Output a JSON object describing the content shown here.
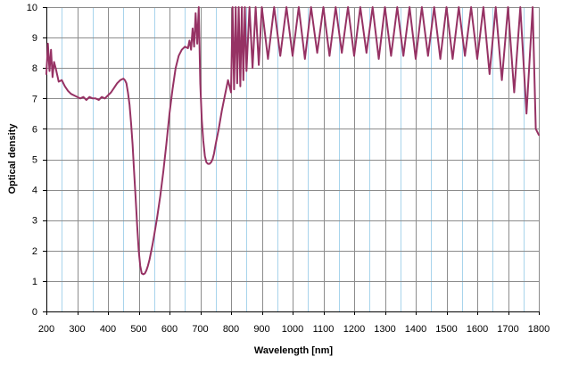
{
  "chart_data": {
    "type": "line",
    "title": "",
    "xlabel": "Wavelength [nm]",
    "ylabel": "Optical density",
    "xlim": [
      200,
      1800
    ],
    "ylim": [
      0,
      10
    ],
    "x_major_ticks": [
      200,
      300,
      400,
      500,
      600,
      700,
      800,
      900,
      1000,
      1100,
      1200,
      1300,
      1400,
      1500,
      1600,
      1700,
      1800
    ],
    "x_minor_step": 50,
    "y_ticks": [
      0,
      1,
      2,
      3,
      4,
      5,
      6,
      7,
      8,
      9,
      10
    ],
    "grid": true,
    "legend": "none",
    "colors": {
      "line": "#963264",
      "grid_major": "#8c8c8c",
      "grid_minor": "#a8d4ec",
      "axis": "#000000"
    },
    "series": [
      {
        "x": [
          200,
          205,
          210,
          215,
          220,
          225,
          230,
          240,
          250,
          260,
          270,
          280,
          290,
          300,
          310,
          320,
          330,
          340,
          350,
          360,
          370,
          380,
          390,
          400,
          410,
          420,
          430,
          440,
          450,
          455,
          460,
          465,
          470,
          475,
          480,
          485,
          490,
          495,
          500,
          505,
          510,
          515,
          520,
          525,
          530,
          535,
          540,
          545,
          550,
          560,
          570,
          580,
          590,
          600,
          610,
          620,
          630,
          640,
          650,
          660,
          665,
          670,
          675,
          680,
          685,
          690,
          695,
          700,
          705,
          710,
          715,
          720,
          725,
          730,
          735,
          740,
          745,
          750,
          760,
          770,
          780,
          790,
          800,
          805,
          810,
          815,
          820,
          825,
          830,
          835,
          840,
          845,
          850,
          860,
          870,
          880,
          890,
          900,
          920,
          940,
          960,
          980,
          1000,
          1020,
          1040,
          1060,
          1080,
          1100,
          1120,
          1140,
          1160,
          1180,
          1200,
          1220,
          1240,
          1260,
          1280,
          1300,
          1320,
          1340,
          1360,
          1380,
          1400,
          1420,
          1440,
          1460,
          1480,
          1500,
          1520,
          1540,
          1560,
          1580,
          1600,
          1620,
          1640,
          1660,
          1680,
          1700,
          1720,
          1740,
          1760,
          1780,
          1790,
          1800
        ],
        "y": [
          7.8,
          8.8,
          7.9,
          8.6,
          7.7,
          8.2,
          8.0,
          7.55,
          7.6,
          7.4,
          7.25,
          7.15,
          7.1,
          7.05,
          7.0,
          7.05,
          6.95,
          7.05,
          7.0,
          7.0,
          6.95,
          7.05,
          7.0,
          7.1,
          7.2,
          7.35,
          7.5,
          7.6,
          7.65,
          7.6,
          7.5,
          7.2,
          6.8,
          6.2,
          5.5,
          4.6,
          3.7,
          2.8,
          2.0,
          1.5,
          1.25,
          1.22,
          1.25,
          1.35,
          1.5,
          1.7,
          1.95,
          2.2,
          2.5,
          3.1,
          3.8,
          4.6,
          5.5,
          6.5,
          7.3,
          8.0,
          8.4,
          8.6,
          8.7,
          8.65,
          8.9,
          8.6,
          9.3,
          8.7,
          9.8,
          8.8,
          10.0,
          7.5,
          6.3,
          5.6,
          5.1,
          4.9,
          4.85,
          4.85,
          4.9,
          5.0,
          5.2,
          5.5,
          6.0,
          6.6,
          7.1,
          7.6,
          7.2,
          10.0,
          7.3,
          10.0,
          7.5,
          10.0,
          7.4,
          10.0,
          7.6,
          10.0,
          7.9,
          10.0,
          8.0,
          10.0,
          8.1,
          10.0,
          8.3,
          10.0,
          8.4,
          10.0,
          8.4,
          10.0,
          8.3,
          10.0,
          8.5,
          10.0,
          8.4,
          10.0,
          8.5,
          10.0,
          8.4,
          10.0,
          8.5,
          10.0,
          8.3,
          10.0,
          8.4,
          10.0,
          8.4,
          10.0,
          8.3,
          10.0,
          8.4,
          10.0,
          8.3,
          10.0,
          8.3,
          10.0,
          8.4,
          10.0,
          8.3,
          10.0,
          7.8,
          10.0,
          7.6,
          10.0,
          7.2,
          10.0,
          6.5,
          10.0,
          6.0,
          5.8
        ]
      }
    ]
  }
}
